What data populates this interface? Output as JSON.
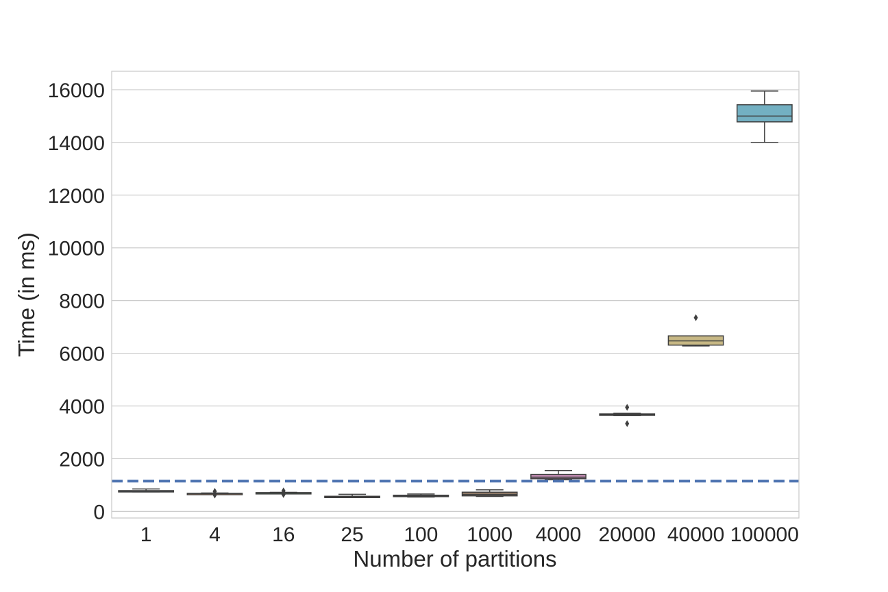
{
  "chart_data": {
    "type": "box",
    "title": "",
    "xlabel": "Number of partitions",
    "ylabel": "Time (in ms)",
    "categories": [
      "1",
      "4",
      "16",
      "25",
      "100",
      "1000",
      "4000",
      "20000",
      "40000",
      "100000"
    ],
    "yticks": [
      "0",
      "2000",
      "4000",
      "6000",
      "8000",
      "10000",
      "12000",
      "14000",
      "16000"
    ],
    "ylim": [
      -250,
      16700
    ],
    "grid": true,
    "reference_line": {
      "value": 1150,
      "style": "dashed",
      "color": "#4c72b0"
    },
    "boxes": [
      {
        "category": "1",
        "whisker_low": 740,
        "q1": 755,
        "median": 775,
        "q3": 790,
        "whisker_high": 850,
        "outliers": [],
        "color": "#4c72b0"
      },
      {
        "category": "4",
        "whisker_low": 660,
        "q1": 665,
        "median": 675,
        "q3": 685,
        "whisker_high": 700,
        "outliers": [
          620,
          760
        ],
        "color": "#dd8452"
      },
      {
        "category": "16",
        "whisker_low": 690,
        "q1": 695,
        "median": 705,
        "q3": 715,
        "whisker_high": 725,
        "outliers": [
          640,
          780
        ],
        "color": "#55a868"
      },
      {
        "category": "25",
        "whisker_low": 530,
        "q1": 545,
        "median": 560,
        "q3": 575,
        "whisker_high": 650,
        "outliers": [],
        "color": "#c44e52"
      },
      {
        "category": "100",
        "whisker_low": 545,
        "q1": 560,
        "median": 585,
        "q3": 615,
        "whisker_high": 660,
        "outliers": [],
        "color": "#8172b3"
      },
      {
        "category": "1000",
        "whisker_low": 570,
        "q1": 590,
        "median": 640,
        "q3": 730,
        "whisker_high": 820,
        "outliers": [],
        "color": "#937860"
      },
      {
        "category": "4000",
        "whisker_low": 1200,
        "q1": 1240,
        "median": 1300,
        "q3": 1400,
        "whisker_high": 1550,
        "outliers": [],
        "color": "#da8bc3"
      },
      {
        "category": "20000",
        "whisker_low": 3640,
        "q1": 3660,
        "median": 3680,
        "q3": 3700,
        "whisker_high": 3720,
        "outliers": [
          3330,
          3950
        ],
        "color": "#8c8c8c"
      },
      {
        "category": "40000",
        "whisker_low": 6280,
        "q1": 6310,
        "median": 6470,
        "q3": 6660,
        "whisker_high": 6660,
        "outliers": [
          7350
        ],
        "color": "#ccb974"
      },
      {
        "category": "100000",
        "whisker_low": 14000,
        "q1": 14780,
        "median": 15000,
        "q3": 15430,
        "whisker_high": 15950,
        "outliers": [],
        "color": "#64b5cd"
      }
    ]
  }
}
